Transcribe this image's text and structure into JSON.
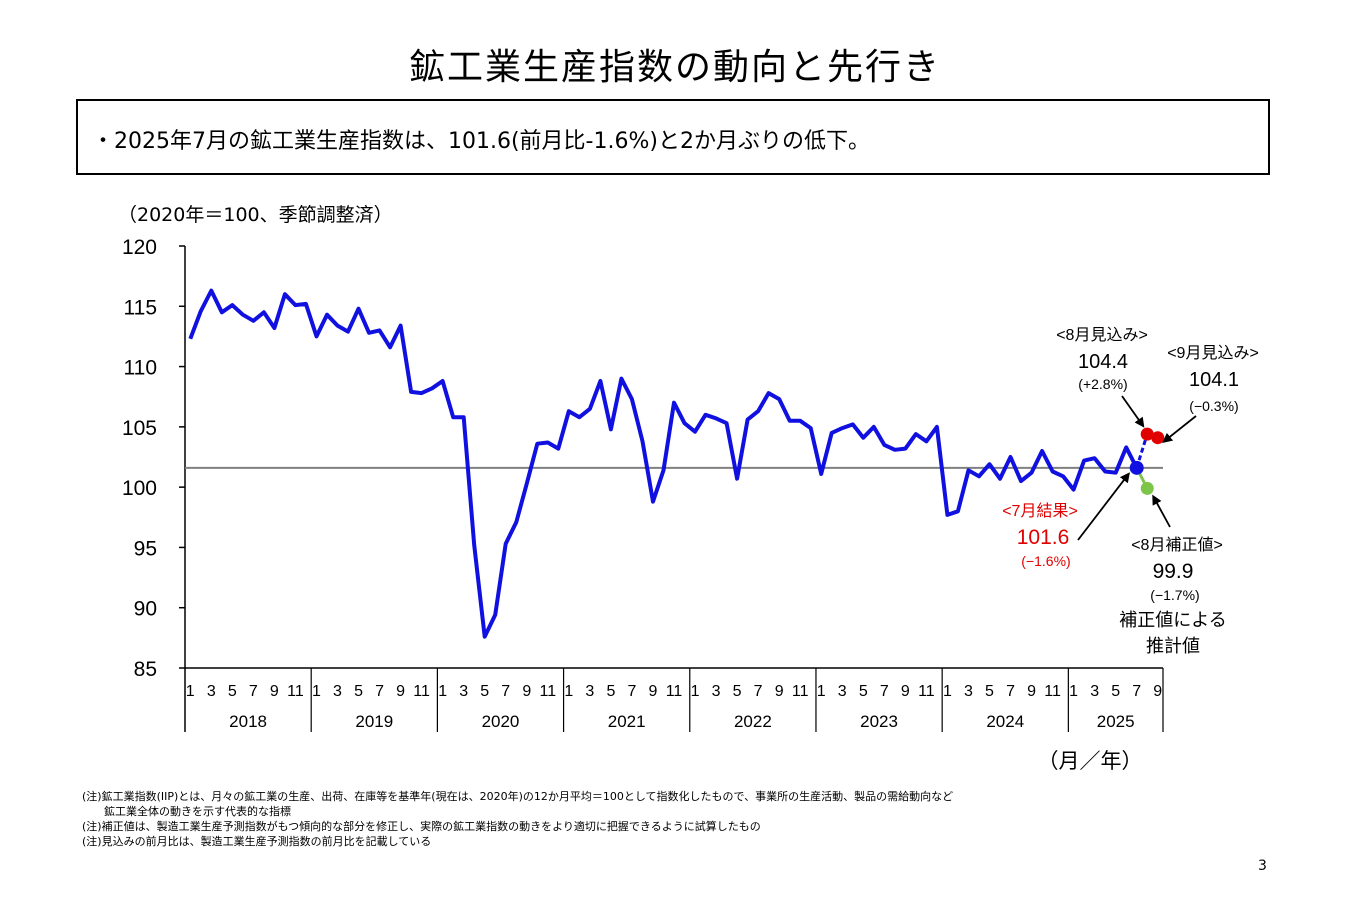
{
  "title": "鉱工業生産指数の動向と先行き",
  "summary": "・2025年7月の鉱工業生産指数は、101.6(前月比-1.6%)と2か月ぶりの低下。",
  "unit_label": "（2020年＝100、季節調整済）",
  "notes": [
    "(注)鉱工業指数(IIP)とは、月々の鉱工業の生産、出荷、在庫等を基準年(現在は、2020年)の12か月平均＝100として指数化したもので、事業所の生産活動、製品の需給動向など",
    "鉱工業全体の動きを示す代表的な指標",
    "(注)補正値は、製造工業生産予測指数がもつ傾向的な部分を修正し、実際の鉱工業指数の動きをより適切に把握できるように試算したもの",
    "(注)見込みの前月比は、製造工業生産予測指数の前月比を記載している"
  ],
  "page_number": "3",
  "chart_data": {
    "type": "line",
    "ylim": [
      85,
      120
    ],
    "yticks": [
      "120",
      "115",
      "110",
      "105",
      "100",
      "95",
      "90",
      "85"
    ],
    "x_month_labels": [
      "1",
      "3",
      "5",
      "7",
      "9",
      "11"
    ],
    "x_month_labels_2025": [
      "1",
      "3",
      "5",
      "7",
      "9"
    ],
    "years": [
      "2018",
      "2019",
      "2020",
      "2021",
      "2022",
      "2023",
      "2024",
      "2025"
    ],
    "xlabel": "（月／年）",
    "reference_line": 101.6,
    "series": [
      {
        "color": "#1010e0",
        "start": "2018-01",
        "values": [
          112.3,
          114.6,
          116.3,
          114.5,
          115.1,
          114.3,
          113.8,
          114.5,
          113.2,
          116.0,
          115.1,
          115.2,
          112.5,
          114.3,
          113.4,
          112.9,
          114.8,
          112.8,
          113.0,
          111.6,
          113.4,
          107.9,
          107.8,
          108.2,
          108.8,
          105.8,
          105.8,
          95.2,
          87.6,
          89.4,
          95.3,
          97.1,
          100.3,
          103.6,
          103.7,
          103.2,
          106.3,
          105.8,
          106.5,
          108.8,
          104.8,
          109.0,
          107.3,
          103.8,
          98.8,
          101.4,
          107.0,
          105.3,
          104.6,
          106.0,
          105.7,
          105.3,
          100.7,
          105.6,
          106.3,
          107.8,
          107.3,
          105.5,
          105.5,
          104.9,
          101.1,
          104.5,
          104.9,
          105.2,
          104.1,
          105.0,
          103.5,
          103.1,
          103.2,
          104.4,
          103.8,
          105.0,
          97.7,
          98.0,
          101.4,
          100.9,
          101.9,
          100.7,
          102.5,
          100.5,
          101.2,
          103.0,
          101.3,
          100.9,
          99.8,
          102.2,
          102.4,
          101.3,
          101.2,
          103.3,
          101.6
        ]
      }
    ],
    "annotations": {
      "july_result": {
        "label": "<7月結果>",
        "value": "101.6",
        "change": "(−1.6%)",
        "x": "2025-07",
        "y": 101.6,
        "color": "#e00000"
      },
      "aug_forecast": {
        "label": "<8月見込み>",
        "value": "104.4",
        "change": "(+2.8%)",
        "x": "2025-08",
        "y": 104.4,
        "color": "#e00000"
      },
      "sep_forecast": {
        "label": "<9月見込み>",
        "value": "104.1",
        "change": "(−0.3%)",
        "x": "2025-09",
        "y": 104.1,
        "color": "#e00000"
      },
      "aug_corrected": {
        "label": "<8月補正値>",
        "value": "99.9",
        "change": "(−1.7%)",
        "note1": "補正値による",
        "note2": "推計値",
        "x": "2025-08",
        "y": 99.9,
        "color": "#7cc44a"
      }
    }
  }
}
